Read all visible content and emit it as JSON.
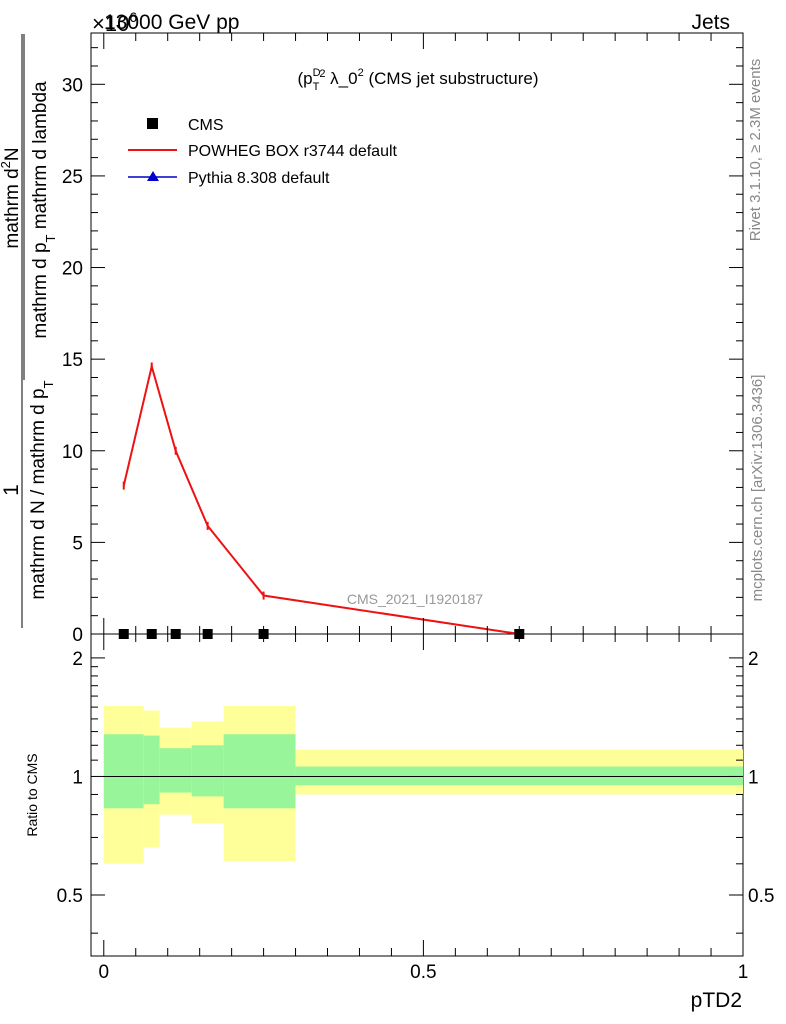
{
  "header": {
    "beam": "13000 GeV pp",
    "process": "Jets",
    "exponent": "×10",
    "exponent_power": "6"
  },
  "plot_title": {
    "pre": "(p",
    "sup_D": "D",
    "sub_T": "T",
    "sup_2": "2",
    "mid": " λ_0",
    "sup_2b": "2",
    "post": " (CMS jet substructure)"
  },
  "side_labels": {
    "rivet": "Rivet 3.1.10, ≥ 2.3M events",
    "mcplots": "mcplots.cern.ch [arXiv:1306.3436]"
  },
  "watermark": "CMS_2021_I1920187",
  "y_label": {
    "numerator_one": "1",
    "denominator_main": "mathrm d N / mathrm d p",
    "denominator_sub": "T",
    "dist_top": "mathrm d",
    "dist_top_sup": "2",
    "dist_top_n": "N",
    "dist_bottom_pre": "mathrm d p",
    "dist_bottom_sub": "T",
    "dist_bottom_post": " mathrm d lambda"
  },
  "ratio_label": "Ratio to CMS",
  "x_label": "pTD2",
  "colors": {
    "cms": "#000000",
    "powheg": "#ee1111",
    "pythia": "#0000cc",
    "band_inner": "#99f599",
    "band_outer": "#ffff99",
    "watermark": "#999999",
    "side": "#888888"
  },
  "chart_data": [
    {
      "type": "line",
      "panel": "main",
      "series": [
        {
          "name": "CMS",
          "marker": "square",
          "x": [
            0.03125,
            0.075,
            0.1125,
            0.1625,
            0.25,
            0.65
          ],
          "y": [
            0.0,
            0.0,
            0.0,
            0.0,
            0.0,
            0.0
          ]
        },
        {
          "name": "POWHEG BOX r3744 default",
          "x": [
            0.03125,
            0.075,
            0.1125,
            0.1625,
            0.25,
            0.65
          ],
          "y": [
            8.1,
            14.6,
            10.0,
            5.9,
            2.1,
            0.0
          ]
        },
        {
          "name": "Pythia 8.308 default",
          "marker": "triangle",
          "x": [],
          "y": []
        }
      ],
      "xlim": [
        -0.02,
        1.0
      ],
      "ylim": [
        0,
        32.8
      ],
      "y_ticks": [
        0,
        5,
        10,
        15,
        20,
        25,
        30
      ],
      "legend_position": "top-left"
    },
    {
      "type": "area",
      "panel": "ratio",
      "ylabel": "Ratio to CMS",
      "xlabel": "pTD2",
      "bins": [
        {
          "lo": 0.0,
          "hi": 0.0625,
          "inner": [
            0.83,
            1.28
          ],
          "outer": [
            0.6,
            1.51
          ]
        },
        {
          "lo": 0.0625,
          "hi": 0.0875,
          "inner": [
            0.85,
            1.27
          ],
          "outer": [
            0.66,
            1.47
          ]
        },
        {
          "lo": 0.0875,
          "hi": 0.1375,
          "inner": [
            0.91,
            1.18
          ],
          "outer": [
            0.8,
            1.33
          ]
        },
        {
          "lo": 0.1375,
          "hi": 0.1875,
          "inner": [
            0.89,
            1.2
          ],
          "outer": [
            0.76,
            1.38
          ]
        },
        {
          "lo": 0.1875,
          "hi": 0.3,
          "inner": [
            0.83,
            1.28
          ],
          "outer": [
            0.61,
            1.51
          ]
        },
        {
          "lo": 0.3,
          "hi": 1.0,
          "inner": [
            0.95,
            1.06
          ],
          "outer": [
            0.9,
            1.17
          ]
        }
      ],
      "reference": 1.0,
      "xlim": [
        -0.02,
        1.0
      ],
      "ylim": [
        0.35,
        2.3
      ],
      "y_ticks": [
        0.5,
        1,
        2
      ],
      "x_ticks": [
        0,
        0.5,
        1
      ]
    }
  ]
}
